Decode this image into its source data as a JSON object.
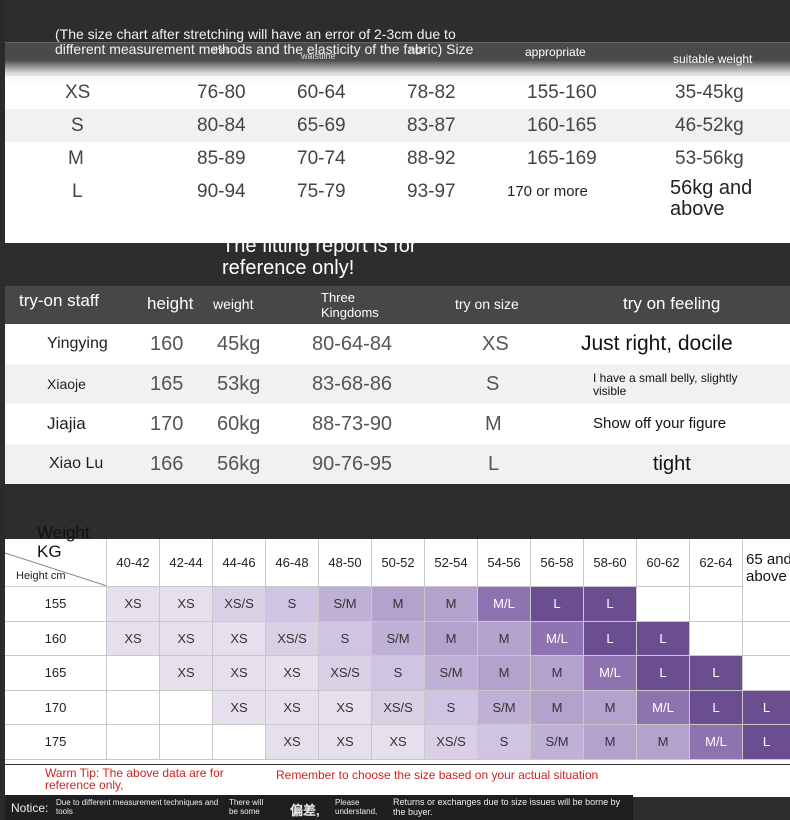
{
  "size_chart": {
    "note": "(The size chart after stretching will have an error of 2-3cm due to different measurement methods and the elasticity of the fabric) Size",
    "col_headers_faded": [
      "chest",
      "waistline",
      "hips"
    ],
    "appropriate_height": "appropriate",
    "suitable_weight": "suitable weight",
    "rows": [
      {
        "size": "XS",
        "chest": "76-80",
        "waist": "60-64",
        "hips": "78-82",
        "height": "155-160",
        "weight": "35-45kg"
      },
      {
        "size": "S",
        "chest": "80-84",
        "waist": "65-69",
        "hips": "83-87",
        "height": "160-165",
        "weight": "46-52kg"
      },
      {
        "size": "M",
        "chest": "85-89",
        "waist": "70-74",
        "hips": "88-92",
        "height": "165-169",
        "weight": "53-56kg"
      },
      {
        "size": "L",
        "chest": "90-94",
        "waist": "75-79",
        "hips": "93-97",
        "height": "170 or more",
        "weight": "56kg and above"
      }
    ]
  },
  "tryon": {
    "report": "The fitting report is for reference only!",
    "headers": {
      "staff": "try-on staff",
      "height": "height",
      "weight": "weight",
      "three": "Three Kingdoms",
      "size": "try on size",
      "feeling": "try on feeling"
    },
    "rows": [
      {
        "name": "Yingying",
        "height": "160",
        "weight": "45kg",
        "three": "80-64-84",
        "size": "XS",
        "feeling": "Just right, docile"
      },
      {
        "name": "Xiaoje",
        "height": "165",
        "weight": "53kg",
        "three": "83-68-86",
        "size": "S",
        "feeling": "I have a small belly, slightly visible"
      },
      {
        "name": "Jiajia",
        "height": "170",
        "weight": "60kg",
        "three": "88-73-90",
        "size": "M",
        "feeling": "Show off your figure"
      },
      {
        "name": "Xiao Lu",
        "height": "166",
        "weight": "56kg",
        "three": "90-76-95",
        "size": "L",
        "feeling": "tight"
      }
    ]
  },
  "grid": {
    "weight_label": "Weight KG",
    "height_label": "Height cm",
    "weights": [
      "40-42",
      "42-44",
      "44-46",
      "46-48",
      "48-50",
      "50-52",
      "52-54",
      "54-56",
      "56-58",
      "58-60",
      "60-62",
      "62-64",
      "65 and above"
    ],
    "heights": [
      "155",
      "160",
      "165",
      "170",
      "175"
    ],
    "cells": [
      [
        "XS",
        "XS",
        "XS/S",
        "S",
        "S/M",
        "M",
        "M",
        "M/L",
        "L",
        "L",
        "",
        "",
        ""
      ],
      [
        "XS",
        "XS",
        "XS",
        "XS/S",
        "S",
        "S/M",
        "M",
        "M",
        "M/L",
        "L",
        "L",
        "",
        ""
      ],
      [
        "",
        "XS",
        "XS",
        "XS",
        "XS/S",
        "S",
        "S/M",
        "M",
        "M",
        "M/L",
        "L",
        "L",
        ""
      ],
      [
        "",
        "",
        "XS",
        "XS",
        "XS",
        "XS/S",
        "S",
        "S/M",
        "M",
        "M",
        "M/L",
        "L",
        "L"
      ],
      [
        "",
        "",
        "",
        "XS",
        "XS",
        "XS",
        "XS/S",
        "S",
        "S/M",
        "M",
        "M",
        "M/L",
        "L"
      ]
    ],
    "size_colors": {
      "XS": "#e6e0ee",
      "XS/S": "#d9d0e6",
      "S": "#cfc4e1",
      "S/M": "#bfb0d6",
      "M": "#b3a2cc",
      "M/L": "#8e73b1",
      "L": "#6a4e90"
    },
    "warm_tip": "Warm Tip: The above data are for reference only,",
    "remember": "Remember to choose the size based on your actual situation",
    "notice": {
      "label": "Notice:",
      "a": "Due to different measurement techniques and tools",
      "b": "There will be some",
      "c": "偏差,",
      "d": "Please understand,",
      "e": "Returns or exchanges due to size issues will be borne by the buyer."
    }
  }
}
